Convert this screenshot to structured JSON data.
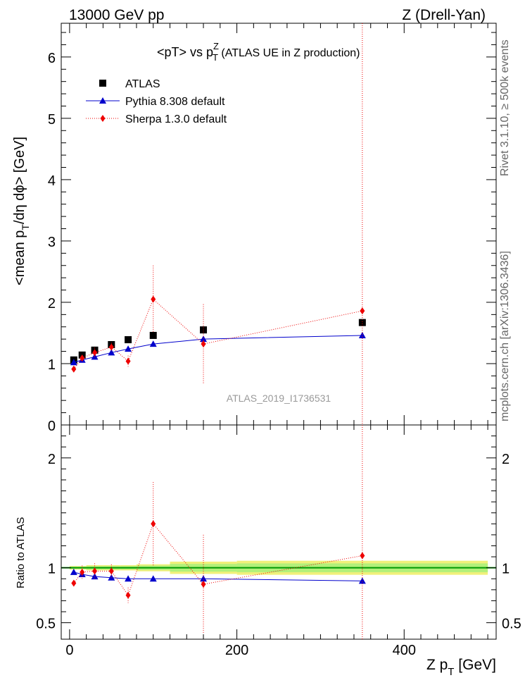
{
  "header": {
    "left": "13000 GeV pp",
    "right": "Z (Drell-Yan)"
  },
  "side_labels": {
    "rivet": "Rivet 3.1.10, ≥ 500k events",
    "mcplots": "mcplots.cern.ch [arXiv:1306.3436]"
  },
  "chart_data": {
    "type": "scatter",
    "title_main": "<pT> vs p",
    "title_sup": "Z",
    "title_sub": "T",
    "title_rest": " (ATLAS UE in Z production)",
    "analysis_tag": "ATLAS_2019_I1736531",
    "ylabel": "<mean p",
    "ylabel_sub": "T",
    "ylabel_rest": "/dη dϕ> [GeV]",
    "xlabel_main": "Z p",
    "xlabel_sub": "T",
    "xlabel_rest": " [GeV]",
    "ratio_ylabel": "Ratio to ATLAS",
    "xlim": [
      -10,
      510
    ],
    "ylim": [
      0,
      6.55
    ],
    "ratio_ylim": [
      0.35,
      2.3
    ],
    "main_yticks": [
      "0",
      "1",
      "2",
      "3",
      "4",
      "5",
      "6"
    ],
    "main_ytick_values": [
      0,
      1,
      2,
      3,
      4,
      5,
      6
    ],
    "ratio_yticks": [
      "0.5",
      "1",
      "2"
    ],
    "ratio_ytick_values": [
      0.5,
      1,
      2
    ],
    "xticks": [
      "0",
      "200",
      "400"
    ],
    "xtick_values": [
      0,
      200,
      400
    ],
    "series": [
      {
        "name": "ATLAS",
        "color": "#000000",
        "marker": "square",
        "x": [
          5,
          15,
          30,
          50,
          70,
          100,
          160,
          350
        ],
        "y": [
          1.06,
          1.14,
          1.22,
          1.31,
          1.39,
          1.46,
          1.55,
          1.67
        ],
        "err": [
          0.02,
          0.02,
          0.03,
          0.03,
          0.03,
          0.04,
          0.05,
          0.06
        ],
        "band_rel": [
          0.01,
          0.01,
          0.015,
          0.015,
          0.015,
          0.02,
          0.035,
          0.04
        ],
        "ratio": [
          1,
          1,
          1,
          1,
          1,
          1,
          1,
          1
        ]
      },
      {
        "name": "Pythia 8.308 default",
        "color": "#0000cc",
        "marker": "triangle",
        "line": "solid",
        "x": [
          5,
          15,
          30,
          50,
          70,
          100,
          160,
          350
        ],
        "y": [
          1.02,
          1.06,
          1.11,
          1.18,
          1.24,
          1.32,
          1.4,
          1.46
        ],
        "err": [
          0.01,
          0.01,
          0.01,
          0.01,
          0.01,
          0.01,
          0.02,
          0.04
        ],
        "ratio": [
          0.96,
          0.94,
          0.92,
          0.91,
          0.9,
          0.9,
          0.9,
          0.88
        ],
        "ratio_err": [
          0.01,
          0.01,
          0.01,
          0.01,
          0.01,
          0.01,
          0.01,
          0.02
        ]
      },
      {
        "name": "Sherpa 1.3.0 default",
        "color": "#ee0000",
        "marker": "diamond",
        "line": "dotted",
        "x": [
          5,
          15,
          30,
          50,
          70,
          100,
          160,
          350
        ],
        "y": [
          0.91,
          1.09,
          1.18,
          1.27,
          1.04,
          2.05,
          1.32,
          1.86
        ],
        "err": [
          0.02,
          0.05,
          0.08,
          0.07,
          0.09,
          0.55,
          0.65,
          4.8
        ],
        "ratio": [
          0.86,
          0.96,
          0.97,
          0.97,
          0.75,
          1.4,
          0.85,
          1.11
        ],
        "ratio_err": [
          0.02,
          0.06,
          0.07,
          0.06,
          0.07,
          0.38,
          0.45,
          3.0
        ]
      }
    ]
  }
}
